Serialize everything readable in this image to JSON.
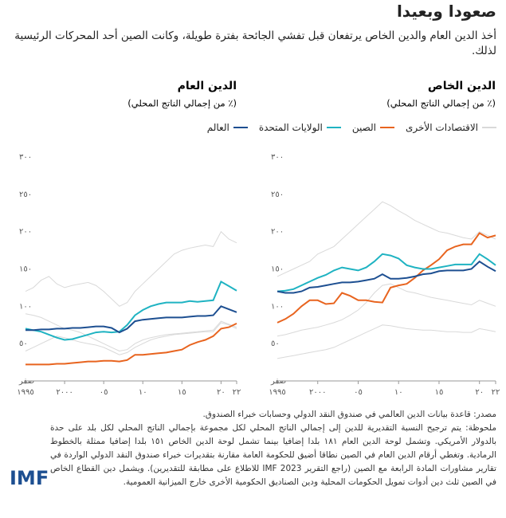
{
  "title": "صعودا وبعيدا",
  "subtitle": "أخذ الدين العام والدين الخاص يرتفعان قبل تفشي الجائحة بفترة طويلة، وكانت الصين أحد المحركات الرئيسية لذلك.",
  "source": "مصدر: قاعدة بيانات الدين العالمي في صندوق النقد الدولي وحسابات خبراء الصندوق.",
  "note": "ملحوظة: يتم ترجيح النسبة التقديرية للدين إلى إجمالي الناتج المحلي لكل مجموعة بإجمالي الناتج المحلي لكل بلد على حدة بالدولار الأمريكي. وتشمل لوحة الدين العام ١٨١ بلدا إضافيا بينما تشمل لوحة الدين الخاص ١٥١ بلدا إضافيا ممثلة بالخطوط الرمادية. وتغطي أرقام الدين العام في الصين نطاقا أضيق للحكومة العامة مقارنة بتقديرات خبراء صندوق النقد الدولي الواردة في تقارير مشاورات المادة الرابعة مع الصين (راجع التقرير IMF 2023 للاطلاع على مطابقة للتقديرين). ويشمل دين القطاع الخاص في الصين ثلث دين أدوات تمويل الحكومات المحلية ودين الصناديق الحكومية الأخرى خارج الميزانية العمومية.",
  "logo": "IMF",
  "chart_data": [
    {
      "type": "line",
      "title": "الدين الخاص",
      "subtitle": "(٪ من إجمالي الناتج المحلي)",
      "x": [
        1995,
        1996,
        1997,
        1998,
        1999,
        2000,
        2001,
        2002,
        2003,
        2004,
        2005,
        2006,
        2007,
        2008,
        2009,
        2010,
        2011,
        2012,
        2013,
        2014,
        2015,
        2016,
        2017,
        2018,
        2019,
        2020,
        2021,
        2022
      ],
      "xlim": [
        1995,
        2022
      ],
      "xticks": [
        {
          "value": 1995,
          "label": "١٩٩٥"
        },
        {
          "value": 2000,
          "label": "٢٠٠٠"
        },
        {
          "value": 2005,
          "label": "٠٥"
        },
        {
          "value": 2010,
          "label": "١٠"
        },
        {
          "value": 2015,
          "label": "١٥"
        },
        {
          "value": 2020,
          "label": "٢٠"
        },
        {
          "value": 2022,
          "label": "٢٢"
        }
      ],
      "ylim": [
        0,
        300
      ],
      "yticks": [
        {
          "value": 0,
          "label": "صفر"
        },
        {
          "value": 50,
          "label": "٥٠"
        },
        {
          "value": 100,
          "label": "١٠٠"
        },
        {
          "value": 150,
          "label": "١٥٠"
        },
        {
          "value": 200,
          "label": "٢٠٠"
        },
        {
          "value": 250,
          "label": "٢٥٠"
        },
        {
          "value": 300,
          "label": "٣٠٠"
        }
      ],
      "series": [
        {
          "name": "الاقتصادات الأخرى",
          "color": "#d9d9d9",
          "values": [
            60,
            62,
            65,
            68,
            70,
            72,
            75,
            78,
            82,
            88,
            95,
            105,
            118,
            128,
            130,
            125,
            120,
            118,
            115,
            112,
            110,
            108,
            106,
            104,
            102,
            108,
            104,
            100
          ]
        },
        {
          "color": "#d9d9d9",
          "values": [
            140,
            145,
            150,
            155,
            160,
            170,
            175,
            180,
            190,
            200,
            210,
            220,
            230,
            240,
            235,
            228,
            222,
            215,
            210,
            205,
            200,
            198,
            195,
            192,
            190,
            200,
            195,
            190
          ]
        },
        {
          "color": "#d9d9d9",
          "values": [
            30,
            32,
            34,
            36,
            38,
            40,
            42,
            45,
            50,
            55,
            60,
            65,
            70,
            75,
            74,
            72,
            70,
            69,
            68,
            68,
            67,
            66,
            66,
            65,
            65,
            70,
            68,
            66
          ]
        },
        {
          "name": "الصين",
          "color": "#e8641f",
          "values": [
            78,
            83,
            90,
            100,
            108,
            108,
            103,
            104,
            118,
            114,
            108,
            108,
            106,
            105,
            125,
            128,
            130,
            138,
            148,
            155,
            163,
            175,
            180,
            183,
            183,
            198,
            192,
            195
          ]
        },
        {
          "name": "الولايات المتحدة",
          "color": "#1fb3c2",
          "values": [
            120,
            121,
            123,
            128,
            133,
            138,
            142,
            148,
            152,
            150,
            148,
            152,
            160,
            170,
            168,
            164,
            155,
            152,
            150,
            150,
            152,
            154,
            156,
            156,
            156,
            170,
            163,
            155
          ]
        },
        {
          "name": "العالم",
          "color": "#1d4f91",
          "values": [
            120,
            118,
            118,
            120,
            125,
            126,
            128,
            130,
            132,
            132,
            133,
            135,
            137,
            143,
            137,
            137,
            138,
            140,
            143,
            144,
            147,
            148,
            148,
            148,
            150,
            160,
            153,
            147
          ]
        }
      ]
    },
    {
      "type": "line",
      "title": "الدين العام",
      "subtitle": "(٪ من إجمالي الناتج المحلي)",
      "x": [
        1995,
        1996,
        1997,
        1998,
        1999,
        2000,
        2001,
        2002,
        2003,
        2004,
        2005,
        2006,
        2007,
        2008,
        2009,
        2010,
        2011,
        2012,
        2013,
        2014,
        2015,
        2016,
        2017,
        2018,
        2019,
        2020,
        2021,
        2022
      ],
      "xlim": [
        1995,
        2022
      ],
      "xticks": [
        {
          "value": 1995,
          "label": "١٩٩٥"
        },
        {
          "value": 2000,
          "label": "٢٠٠٠"
        },
        {
          "value": 2005,
          "label": "٠٥"
        },
        {
          "value": 2010,
          "label": "١٠"
        },
        {
          "value": 2015,
          "label": "١٥"
        },
        {
          "value": 2020,
          "label": "٢٠"
        },
        {
          "value": 2022,
          "label": "٢٢"
        }
      ],
      "ylim": [
        0,
        300
      ],
      "yticks": [
        {
          "value": 0,
          "label": "صفر"
        },
        {
          "value": 50,
          "label": "٥٠"
        },
        {
          "value": 100,
          "label": "١٠٠"
        },
        {
          "value": 150,
          "label": "١٥٠"
        },
        {
          "value": 200,
          "label": "٢٠٠"
        },
        {
          "value": 250,
          "label": "٢٥٠"
        },
        {
          "value": 300,
          "label": "٣٠٠"
        }
      ],
      "series": [
        {
          "name": "الاقتصادات الأخرى",
          "color": "#d9d9d9",
          "values": [
            120,
            125,
            135,
            140,
            130,
            125,
            128,
            130,
            132,
            128,
            120,
            110,
            100,
            105,
            120,
            130,
            140,
            150,
            160,
            170,
            175,
            178,
            180,
            182,
            180,
            200,
            190,
            185
          ]
        },
        {
          "color": "#d9d9d9",
          "values": [
            40,
            45,
            50,
            55,
            60,
            58,
            55,
            52,
            50,
            48,
            45,
            40,
            35,
            38,
            45,
            50,
            55,
            58,
            60,
            62,
            63,
            64,
            65,
            66,
            66,
            78,
            75,
            70
          ]
        },
        {
          "color": "#d9d9d9",
          "values": [
            90,
            88,
            85,
            80,
            75,
            70,
            68,
            65,
            60,
            55,
            50,
            45,
            40,
            42,
            50,
            55,
            58,
            60,
            62,
            63,
            64,
            65,
            66,
            67,
            68,
            80,
            76,
            72
          ]
        },
        {
          "name": "الصين",
          "color": "#e8641f",
          "values": [
            22,
            22,
            22,
            22,
            23,
            23,
            24,
            25,
            26,
            26,
            27,
            27,
            26,
            28,
            35,
            35,
            36,
            37,
            38,
            40,
            42,
            48,
            52,
            55,
            60,
            70,
            72,
            77
          ]
        },
        {
          "name": "الولايات المتحدة",
          "color": "#1fb3c2",
          "values": [
            70,
            68,
            66,
            62,
            58,
            55,
            56,
            59,
            62,
            65,
            66,
            65,
            66,
            75,
            88,
            95,
            100,
            103,
            105,
            105,
            105,
            107,
            106,
            107,
            108,
            133,
            127,
            121
          ]
        },
        {
          "name": "العالم",
          "color": "#1d4f91",
          "values": [
            68,
            68,
            69,
            69,
            70,
            70,
            71,
            71,
            72,
            73,
            73,
            71,
            65,
            70,
            80,
            82,
            83,
            84,
            85,
            85,
            85,
            86,
            87,
            87,
            88,
            100,
            96,
            92
          ]
        }
      ]
    }
  ]
}
